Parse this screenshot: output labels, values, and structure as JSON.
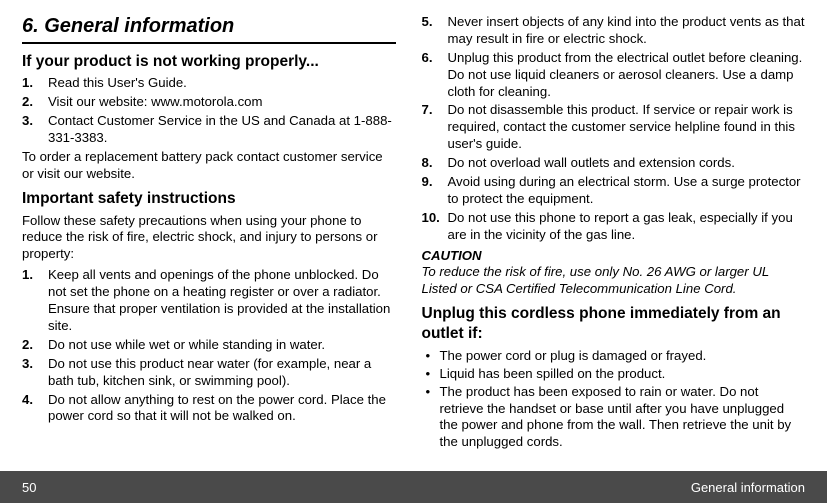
{
  "section": {
    "title": "6. General information",
    "h2_a": "If your product is not working properly...",
    "list_a": [
      "Read this User's Guide.",
      "Visit our website: www.motorola.com",
      "Contact Customer Service in the US and Canada at 1-888-331-3383."
    ],
    "para_a": "To order a replacement battery pack contact customer service or visit our website.",
    "h2_b": "Important safety instructions",
    "para_b": "Follow these safety precautions when using your phone to reduce the risk of fire, electric shock, and injury to persons or property:",
    "list_b_left": [
      "Keep all vents and openings of the phone unblocked. Do not set the phone on a heating register or over a radiator. Ensure that proper ventilation is provided at the installation site.",
      "Do not use while wet or while standing in water.",
      "Do not use this product near water (for example, near a bath tub, kitchen sink, or swimming pool).",
      "Do not allow anything to rest on the power cord. Place the power cord so that it will not be walked on."
    ],
    "list_b_right_start": 5,
    "list_b_right": [
      "Never insert objects of any kind into the product vents as that may result in fire or electric shock.",
      "Unplug this product from the electrical outlet before cleaning. Do not use liquid cleaners or aerosol cleaners. Use a damp cloth for cleaning.",
      "Do not disassemble this product. If service or repair work is required, contact the customer service helpline found in this user's guide.",
      "Do not overload wall outlets and extension cords.",
      "Avoid using during an electrical storm. Use a surge protector to protect the equipment.",
      "Do not use this phone to report a gas leak, especially if you are in the vicinity of the gas line."
    ],
    "caution_h": "CAUTION",
    "caution_body": "To reduce the risk of fire, use only No. 26 AWG or larger UL Listed or CSA Certified Telecommunication Line Cord.",
    "h2_c": "Unplug this cordless phone immediately from an outlet if:",
    "bullets_c": [
      "The power cord or plug is damaged or frayed.",
      "Liquid has been spilled on the product.",
      "The product has been exposed to rain or water. Do not retrieve the handset or base until after you have unplugged the power and phone from the wall. Then retrieve the unit by the unplugged cords."
    ]
  },
  "footer": {
    "page": "50",
    "chapter": "General information"
  },
  "colors": {
    "footer_bg": "#4a4a4a",
    "text": "#000000",
    "bg": "#ffffff",
    "footer_text": "#ffffff"
  }
}
